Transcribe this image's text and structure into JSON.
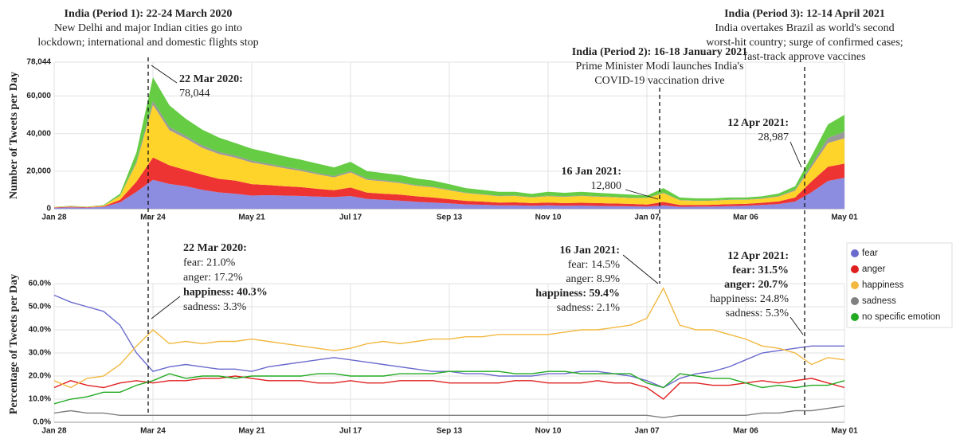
{
  "chart_data": [
    {
      "type": "stacked_area",
      "y_label": "Number of Tweets per Day",
      "categories": [
        "Jan 28",
        null,
        null,
        null,
        null,
        null,
        "Mar 24",
        null,
        null,
        null,
        null,
        null,
        "May 21",
        null,
        null,
        null,
        null,
        null,
        "Jul 17",
        null,
        null,
        null,
        null,
        null,
        "Sep 13",
        null,
        null,
        null,
        null,
        null,
        "Nov 10",
        null,
        null,
        null,
        null,
        null,
        "Jan 07",
        null,
        null,
        null,
        null,
        null,
        "Mar 06",
        null,
        null,
        null,
        null,
        null,
        "May 01"
      ],
      "ylim": [
        0,
        78044
      ],
      "yticks": [
        0,
        {
          "value": 20000,
          "label": "20,000"
        },
        {
          "value": 40000,
          "label": "40,000"
        },
        {
          "value": 60000,
          "label": "60,000"
        },
        {
          "value": 78044,
          "label": "78,044"
        }
      ],
      "grid": true,
      "series": [
        {
          "color": "#8c8ce0",
          "values": [
            550,
            780,
            600,
            960,
            3400,
            9000,
            15400,
            13200,
            12000,
            10100,
            8700,
            8000,
            7000,
            7200,
            7000,
            6800,
            6500,
            6200,
            6800,
            5200,
            4800,
            4300,
            3700,
            3300,
            2900,
            2300,
            2100,
            1800,
            1800,
            1600,
            1800,
            1600,
            1700,
            1500,
            1400,
            1300,
            1100,
            1800,
            1000,
            1100,
            1200,
            1400,
            1600,
            2000,
            2500,
            3800,
            8800,
            14800,
            16500
          ]
        },
        {
          "color": "#ee3333",
          "values": [
            150,
            270,
            190,
            300,
            1400,
            5400,
            11900,
            9900,
            8600,
            8000,
            7200,
            7000,
            6100,
            5400,
            5000,
            4700,
            4100,
            3700,
            4500,
            3400,
            3200,
            3200,
            2900,
            2700,
            2200,
            1900,
            1700,
            1500,
            1600,
            1400,
            1500,
            1400,
            1500,
            1500,
            1400,
            1300,
            1100,
            1800,
            1000,
            900,
            900,
            1000,
            1000,
            1200,
            1400,
            2200,
            5800,
            7600,
            7500
          ]
        },
        {
          "color": "#ffd42a",
          "values": [
            180,
            230,
            230,
            400,
            2000,
            9900,
            28000,
            18700,
            16800,
            14300,
            13300,
            12200,
            11500,
            10500,
            9500,
            8600,
            7700,
            6800,
            8000,
            6800,
            6600,
            6100,
            5600,
            5400,
            4700,
            4100,
            3700,
            3400,
            3400,
            3000,
            3400,
            3300,
            3600,
            3400,
            3300,
            3100,
            3500,
            4700,
            2500,
            2200,
            2200,
            2300,
            2200,
            2100,
            2600,
            3600,
            7600,
            12600,
            13500
          ]
        },
        {
          "color": "#999999",
          "values": [
            40,
            80,
            50,
            80,
            200,
            900,
            2100,
            1700,
            1400,
            1300,
            1100,
            1100,
            1000,
            900,
            800,
            800,
            700,
            700,
            700,
            600,
            600,
            500,
            500,
            400,
            400,
            300,
            300,
            300,
            300,
            200,
            300,
            300,
            300,
            300,
            200,
            200,
            100,
            300,
            200,
            200,
            200,
            200,
            200,
            300,
            300,
            600,
            1400,
            2700,
            3500
          ]
        },
        {
          "color": "#66cc44",
          "values": [
            80,
            150,
            130,
            260,
            1000,
            4800,
            12600,
            11500,
            9100,
            8400,
            7600,
            6700,
            6400,
            6000,
            5600,
            5200,
            5000,
            4600,
            5000,
            4000,
            3800,
            3800,
            3400,
            3200,
            2900,
            2400,
            2200,
            2000,
            1900,
            1700,
            2000,
            1900,
            1900,
            1800,
            1700,
            1600,
            1200,
            2400,
            1300,
            1100,
            1000,
            1100,
            1000,
            1000,
            1300,
            1800,
            4500,
            7200,
            9000
          ]
        }
      ],
      "annotations": [
        [
          {
            "text": "India (Period 1): 22-24 March 2020",
            "bold": true
          },
          {
            "text": "New Delhi and major Indian cities go into",
            "bold": false
          },
          {
            "text": "lockdown; international and domestic flights stop",
            "bold": false
          }
        ],
        [
          {
            "text": "India (Period 2): 16-18 January 2021",
            "bold": true
          },
          {
            "text": "Prime Minister Modi launches India's",
            "bold": false
          },
          {
            "text": "COVID-19 vaccination drive",
            "bold": false
          }
        ],
        [
          {
            "text": "India (Period 3): 12-14 April 2021",
            "bold": true
          },
          {
            "text": "India overtakes Brazil  as world's second",
            "bold": false
          },
          {
            "text": "worst-hit country; surge of confirmed cases;",
            "bold": false
          },
          {
            "text": "fast-track approve vaccines",
            "bold": false
          }
        ],
        [
          {
            "text": "22 Mar 2020:",
            "bold": true
          },
          {
            "text": "78,044",
            "bold": false
          }
        ],
        [
          {
            "text": "16 Jan 2021:",
            "bold": true
          },
          {
            "text": "12,800",
            "bold": false
          }
        ],
        [
          {
            "text": "12 Apr 2021:",
            "bold": true
          },
          {
            "text": "28,987",
            "bold": false
          }
        ]
      ]
    },
    {
      "type": "line",
      "y_label": "Percentage of Tweets per Day",
      "categories": [
        "Jan 28",
        null,
        null,
        null,
        null,
        null,
        "Mar 24",
        null,
        null,
        null,
        null,
        null,
        "May 21",
        null,
        null,
        null,
        null,
        null,
        "Jul 17",
        null,
        null,
        null,
        null,
        null,
        "Sep 13",
        null,
        null,
        null,
        null,
        null,
        "Nov 10",
        null,
        null,
        null,
        null,
        null,
        "Jan 07",
        null,
        null,
        null,
        null,
        null,
        "Mar 06",
        null,
        null,
        null,
        null,
        null,
        "May 01"
      ],
      "ylim": [
        0,
        60
      ],
      "yticks": [
        {
          "value": 0,
          "label": "0.0%"
        },
        {
          "value": 10,
          "label": "10.0%"
        },
        {
          "value": 20,
          "label": "20.0%"
        },
        {
          "value": 30,
          "label": "30.0%"
        },
        {
          "value": 40,
          "label": "40.0%"
        },
        {
          "value": 50,
          "label": "50.0%"
        },
        {
          "value": 60,
          "label": "60.0%"
        }
      ],
      "grid": true,
      "legend": "right",
      "series": [
        {
          "name": "fear",
          "color": "#6a6acd",
          "values": [
            55,
            52,
            50,
            48,
            42,
            30,
            22,
            24,
            25,
            24,
            23,
            23,
            22,
            24,
            25,
            26,
            27,
            28,
            27,
            26,
            25,
            24,
            23,
            22,
            22,
            21,
            21,
            20,
            20,
            20,
            21,
            21,
            22,
            22,
            21,
            20,
            18,
            15,
            19,
            21,
            22,
            24,
            27,
            30,
            31,
            32,
            33,
            33,
            33
          ]
        },
        {
          "name": "anger",
          "color": "#e02020",
          "values": [
            15,
            18,
            16,
            15,
            17,
            18,
            17,
            18,
            18,
            19,
            19,
            20,
            19,
            18,
            18,
            18,
            17,
            17,
            18,
            17,
            17,
            18,
            18,
            18,
            17,
            17,
            17,
            17,
            18,
            18,
            17,
            17,
            17,
            18,
            17,
            17,
            15,
            10,
            17,
            17,
            16,
            16,
            17,
            18,
            17,
            18,
            19,
            17,
            15
          ]
        },
        {
          "name": "happiness",
          "color": "#f2b840",
          "values": [
            18,
            15,
            19,
            20,
            25,
            33,
            40,
            34,
            35,
            34,
            35,
            35,
            36,
            35,
            34,
            33,
            32,
            31,
            32,
            34,
            35,
            34,
            35,
            36,
            36,
            37,
            37,
            38,
            38,
            38,
            38,
            39,
            40,
            40,
            41,
            42,
            45,
            58,
            42,
            40,
            40,
            38,
            36,
            33,
            32,
            30,
            25,
            28,
            27
          ]
        },
        {
          "name": "sadness",
          "color": "#808080",
          "values": [
            4,
            5,
            4,
            4,
            3,
            3,
            3,
            3,
            3,
            3,
            3,
            3,
            3,
            3,
            3,
            3,
            3,
            3,
            3,
            3,
            3,
            3,
            3,
            3,
            3,
            3,
            3,
            3,
            3,
            3,
            3,
            3,
            3,
            3,
            3,
            3,
            3,
            2,
            3,
            3,
            3,
            3,
            3,
            4,
            4,
            5,
            5,
            6,
            7
          ]
        },
        {
          "name": "no specific emotion",
          "color": "#22aa22",
          "values": [
            8,
            10,
            11,
            13,
            13,
            16,
            18,
            21,
            19,
            20,
            20,
            19,
            20,
            20,
            20,
            20,
            21,
            21,
            20,
            20,
            20,
            21,
            21,
            21,
            22,
            22,
            22,
            22,
            21,
            21,
            22,
            22,
            21,
            21,
            21,
            21,
            17,
            15,
            21,
            20,
            19,
            19,
            17,
            15,
            16,
            15,
            16,
            16,
            18
          ]
        }
      ],
      "annotations": [
        [
          {
            "text": "22 Mar 2020:",
            "bold": true
          },
          {
            "text": "fear: 21.0%",
            "bold": false
          },
          {
            "text": "anger: 17.2%",
            "bold": false
          },
          {
            "text": "happiness: 40.3%",
            "bold": true
          },
          {
            "text": "sadness: 3.3%",
            "bold": false
          }
        ],
        [
          {
            "text": "16 Jan 2021:",
            "bold": true
          },
          {
            "text": "fear: 14.5%",
            "bold": false
          },
          {
            "text": "anger: 8.9%",
            "bold": false
          },
          {
            "text": "happiness: 59.4%",
            "bold": true
          },
          {
            "text": "sadness: 2.1%",
            "bold": false
          }
        ],
        [
          {
            "text": "12 Apr 2021:",
            "bold": true
          },
          {
            "text": "fear: 31.5%",
            "bold": true
          },
          {
            "text": "anger: 20.7%",
            "bold": true
          },
          {
            "text": "happiness: 24.8%",
            "bold": false
          },
          {
            "text": "sadness: 5.3%",
            "bold": false
          }
        ]
      ]
    }
  ]
}
